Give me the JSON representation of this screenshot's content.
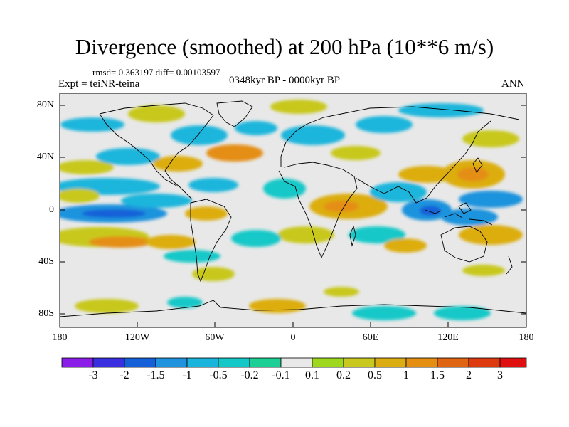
{
  "title": "Divergence (smoothed) at 200 hPa (10**6 m/s)",
  "stats_line": "rmsd= 0.363197 diff= 0.00103597",
  "experiment": "Expt = teiNR-teina",
  "period": "0348kyr BP - 0000kyr BP",
  "season": "ANN",
  "axes": {
    "lat_ticks": [
      "80N",
      "40N",
      "0",
      "40S",
      "80S"
    ],
    "lon_ticks": [
      "180",
      "120W",
      "60W",
      "0",
      "60E",
      "120E",
      "180"
    ]
  },
  "colorbar": {
    "labels": [
      "-3",
      "-2",
      "-1.5",
      "-1",
      "-0.5",
      "-0.2",
      "-0.1",
      "0.1",
      "0.2",
      "0.5",
      "1",
      "1.5",
      "2",
      "3"
    ],
    "colors": [
      "#8a1ee8",
      "#3a2fe0",
      "#1560d8",
      "#1f93dd",
      "#1ab5dc",
      "#15c8c8",
      "#1ccf95",
      "#e8e8e8",
      "#9ed81e",
      "#c8c81e",
      "#dcad10",
      "#e48e12",
      "#e06512",
      "#dd3a10",
      "#e01010"
    ]
  },
  "colors": {
    "ocean_background": "#e8e8e8",
    "coastline": "#000000"
  }
}
